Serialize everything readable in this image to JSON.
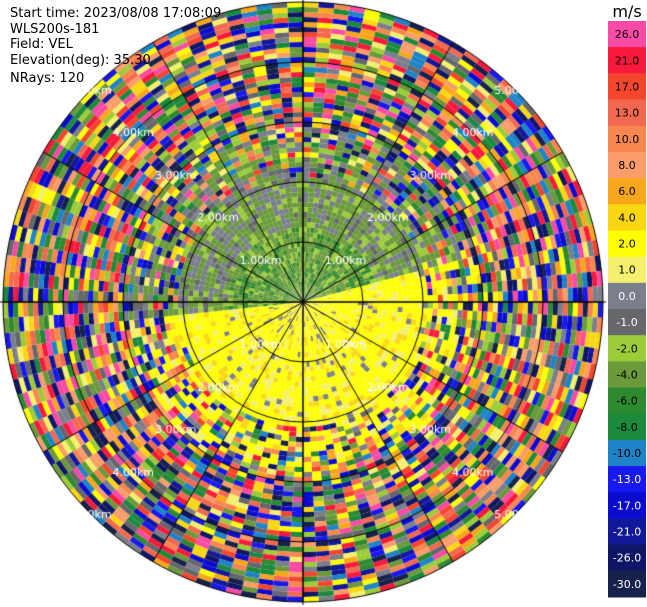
{
  "info": {
    "start_time": "Start time: 2023/08/08 17:08:09",
    "instrument": "WLS200s-181",
    "field": "Field: VEL",
    "elevation": "Elevation(deg): 35.30",
    "nrays": "NRays: 120"
  },
  "ring_labels": [
    "1.00km",
    "2.00km",
    "3.00km",
    "4.00km",
    "5.00km"
  ],
  "colorbar": {
    "unit": "m/s",
    "levels": [
      {
        "label": "26.0",
        "color": "#f94aa6"
      },
      {
        "label": "21.0",
        "color": "#f8193b"
      },
      {
        "label": "17.0",
        "color": "#f4462d"
      },
      {
        "label": "13.0",
        "color": "#f3694f"
      },
      {
        "label": "10.0",
        "color": "#f7874e"
      },
      {
        "label": "8.0",
        "color": "#fa9d6a"
      },
      {
        "label": "6.0",
        "color": "#f9a71a"
      },
      {
        "label": "4.0",
        "color": "#f9d713"
      },
      {
        "label": "2.0",
        "color": "#fffe03"
      },
      {
        "label": "1.0",
        "color": "#f4f06e"
      },
      {
        "label": "0.0",
        "color": "#7a7f8b"
      },
      {
        "label": "-1.0",
        "color": "#66676b"
      },
      {
        "label": "-2.0",
        "color": "#9ccc38"
      },
      {
        "label": "-4.0",
        "color": "#6a9a3a"
      },
      {
        "label": "-6.0",
        "color": "#2e8a2e"
      },
      {
        "label": "-8.0",
        "color": "#1b8a3c"
      },
      {
        "label": "-10.0",
        "color": "#1e83c7"
      },
      {
        "label": "-13.0",
        "color": "#1818f0"
      },
      {
        "label": "-17.0",
        "color": "#0b0bd0"
      },
      {
        "label": "-21.0",
        "color": "#12189a"
      },
      {
        "label": "-26.0",
        "color": "#101666"
      },
      {
        "label": "-30.0",
        "color": "#16214c"
      }
    ]
  }
}
